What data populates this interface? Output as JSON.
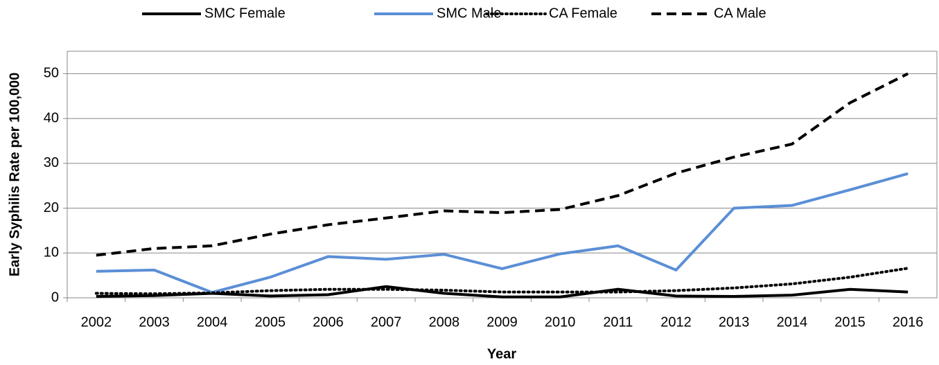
{
  "chart_data": {
    "type": "line",
    "x_label": "Year",
    "y_label": "Early Syphilis Rate per 100,000",
    "categories": [
      "2002",
      "2003",
      "2004",
      "2005",
      "2006",
      "2007",
      "2008",
      "2009",
      "2010",
      "2011",
      "2012",
      "2013",
      "2014",
      "2015",
      "2016"
    ],
    "series": [
      {
        "name": "SMC Female",
        "color": "#000000",
        "dash": "solid",
        "values": [
          0.3,
          0.5,
          1.0,
          0.4,
          0.7,
          2.5,
          1.0,
          0.2,
          0.2,
          1.9,
          0.4,
          0.3,
          0.6,
          1.9,
          1.3
        ]
      },
      {
        "name": "SMC Male",
        "color": "#5b8fd6",
        "dash": "solid",
        "values": [
          5.9,
          6.2,
          1.2,
          4.6,
          9.2,
          8.6,
          9.7,
          6.5,
          9.8,
          11.6,
          6.2,
          20.0,
          20.6,
          24.1,
          27.7
        ]
      },
      {
        "name": "CA Female",
        "color": "#000000",
        "dash": "dotted",
        "values": [
          1.0,
          0.9,
          1.1,
          1.6,
          1.9,
          1.9,
          1.7,
          1.3,
          1.3,
          1.3,
          1.6,
          2.2,
          3.1,
          4.6,
          6.6
        ]
      },
      {
        "name": "CA Male",
        "color": "#000000",
        "dash": "dashed",
        "values": [
          9.5,
          11.0,
          11.6,
          14.2,
          16.3,
          17.8,
          19.4,
          19.0,
          19.7,
          22.8,
          27.8,
          31.4,
          34.3,
          43.5,
          50.0
        ]
      }
    ],
    "ylim": [
      0,
      55
    ],
    "yticks": [
      0,
      10,
      20,
      30,
      40,
      50
    ],
    "grid": true,
    "legend": "top"
  }
}
